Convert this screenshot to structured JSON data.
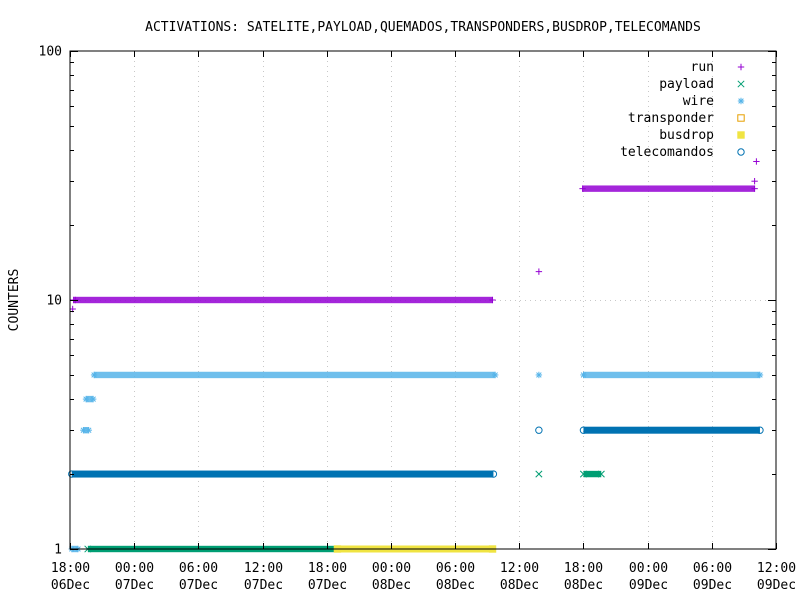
{
  "chart_data": {
    "type": "scatter",
    "title": "ACTIVATIONS: SATELITE,PAYLOAD,QUEMADOS,TRANSPONDERS,BUSDROP,TELECOMANDS",
    "xlabel": "",
    "ylabel": "COUNTERS",
    "yscale": "log",
    "ylim": [
      1,
      100
    ],
    "y_ticks": [
      {
        "value": 1,
        "label": "1"
      },
      {
        "value": 10,
        "label": "10"
      },
      {
        "value": 100,
        "label": "100"
      }
    ],
    "xlim": [
      "2023-12-06T18:00",
      "2023-12-09T12:00"
    ],
    "x_ticks": [
      {
        "time": "2023-12-06T18:00",
        "line1": "18:00",
        "line2": "06Dec"
      },
      {
        "time": "2023-12-07T00:00",
        "line1": "00:00",
        "line2": "07Dec"
      },
      {
        "time": "2023-12-07T06:00",
        "line1": "06:00",
        "line2": "07Dec"
      },
      {
        "time": "2023-12-07T12:00",
        "line1": "12:00",
        "line2": "07Dec"
      },
      {
        "time": "2023-12-07T18:00",
        "line1": "18:00",
        "line2": "07Dec"
      },
      {
        "time": "2023-12-08T00:00",
        "line1": "00:00",
        "line2": "08Dec"
      },
      {
        "time": "2023-12-08T06:00",
        "line1": "06:00",
        "line2": "08Dec"
      },
      {
        "time": "2023-12-08T12:00",
        "line1": "12:00",
        "line2": "08Dec"
      },
      {
        "time": "2023-12-08T18:00",
        "line1": "18:00",
        "line2": "08Dec"
      },
      {
        "time": "2023-12-09T00:00",
        "line1": "00:00",
        "line2": "09Dec"
      },
      {
        "time": "2023-12-09T06:00",
        "line1": "06:00",
        "line2": "09Dec"
      },
      {
        "time": "2023-12-09T12:00",
        "line1": "12:00",
        "line2": "09Dec"
      }
    ],
    "grid": true,
    "legend_position": "top-right",
    "series": [
      {
        "name": "run",
        "marker": "plus",
        "color": "#9400d3",
        "points": [
          {
            "x": "2023-12-06T18:15",
            "y": 9.2
          },
          {
            "x": "2023-12-06T18:30",
            "y": 10
          },
          {
            "x": "2023-12-08T13:50",
            "y": 13
          },
          {
            "x": "2023-12-09T10:00",
            "y": 30
          },
          {
            "x": "2023-12-09T10:10",
            "y": 36
          }
        ],
        "ranges": [
          {
            "x_from": "2023-12-06T18:20",
            "x_to": "2023-12-08T09:30",
            "y": 10
          },
          {
            "x_from": "2023-12-08T17:55",
            "x_to": "2023-12-09T10:00",
            "y": 28
          }
        ]
      },
      {
        "name": "payload",
        "marker": "cross",
        "color": "#009e73",
        "points": [
          {
            "x": "2023-12-08T13:50",
            "y": 2
          }
        ],
        "ranges": [
          {
            "x_from": "2023-12-06T19:40",
            "x_to": "2023-12-07T19:00",
            "y": 1
          },
          {
            "x_from": "2023-12-08T18:00",
            "x_to": "2023-12-08T19:40",
            "y": 2
          }
        ]
      },
      {
        "name": "wire",
        "marker": "star",
        "color": "#56b4e9",
        "points": [
          {
            "x": "2023-12-08T13:50",
            "y": 5
          }
        ],
        "ranges": [
          {
            "x_from": "2023-12-06T18:10",
            "x_to": "2023-12-06T18:45",
            "y": 1
          },
          {
            "x_from": "2023-12-06T19:15",
            "x_to": "2023-12-06T19:45",
            "y": 3
          },
          {
            "x_from": "2023-12-06T19:30",
            "x_to": "2023-12-06T20:10",
            "y": 4
          },
          {
            "x_from": "2023-12-06T20:15",
            "x_to": "2023-12-08T09:45",
            "y": 5
          },
          {
            "x_from": "2023-12-08T18:00",
            "x_to": "2023-12-09T10:30",
            "y": 5
          }
        ]
      },
      {
        "name": "transponder",
        "marker": "open-square",
        "color": "#e69f00",
        "points": [],
        "ranges": []
      },
      {
        "name": "busdrop",
        "marker": "filled-square",
        "color": "#f0e442",
        "points": [],
        "ranges": [
          {
            "x_from": "2023-12-07T19:00",
            "x_to": "2023-12-08T09:30",
            "y": 1
          }
        ]
      },
      {
        "name": "telecomandos",
        "marker": "open-circle",
        "color": "#0072b2",
        "points": [
          {
            "x": "2023-12-08T13:50",
            "y": 3
          }
        ],
        "ranges": [
          {
            "x_from": "2023-12-06T18:10",
            "x_to": "2023-12-08T09:35",
            "y": 2
          },
          {
            "x_from": "2023-12-08T18:00",
            "x_to": "2023-12-09T10:30",
            "y": 3
          }
        ]
      }
    ]
  }
}
